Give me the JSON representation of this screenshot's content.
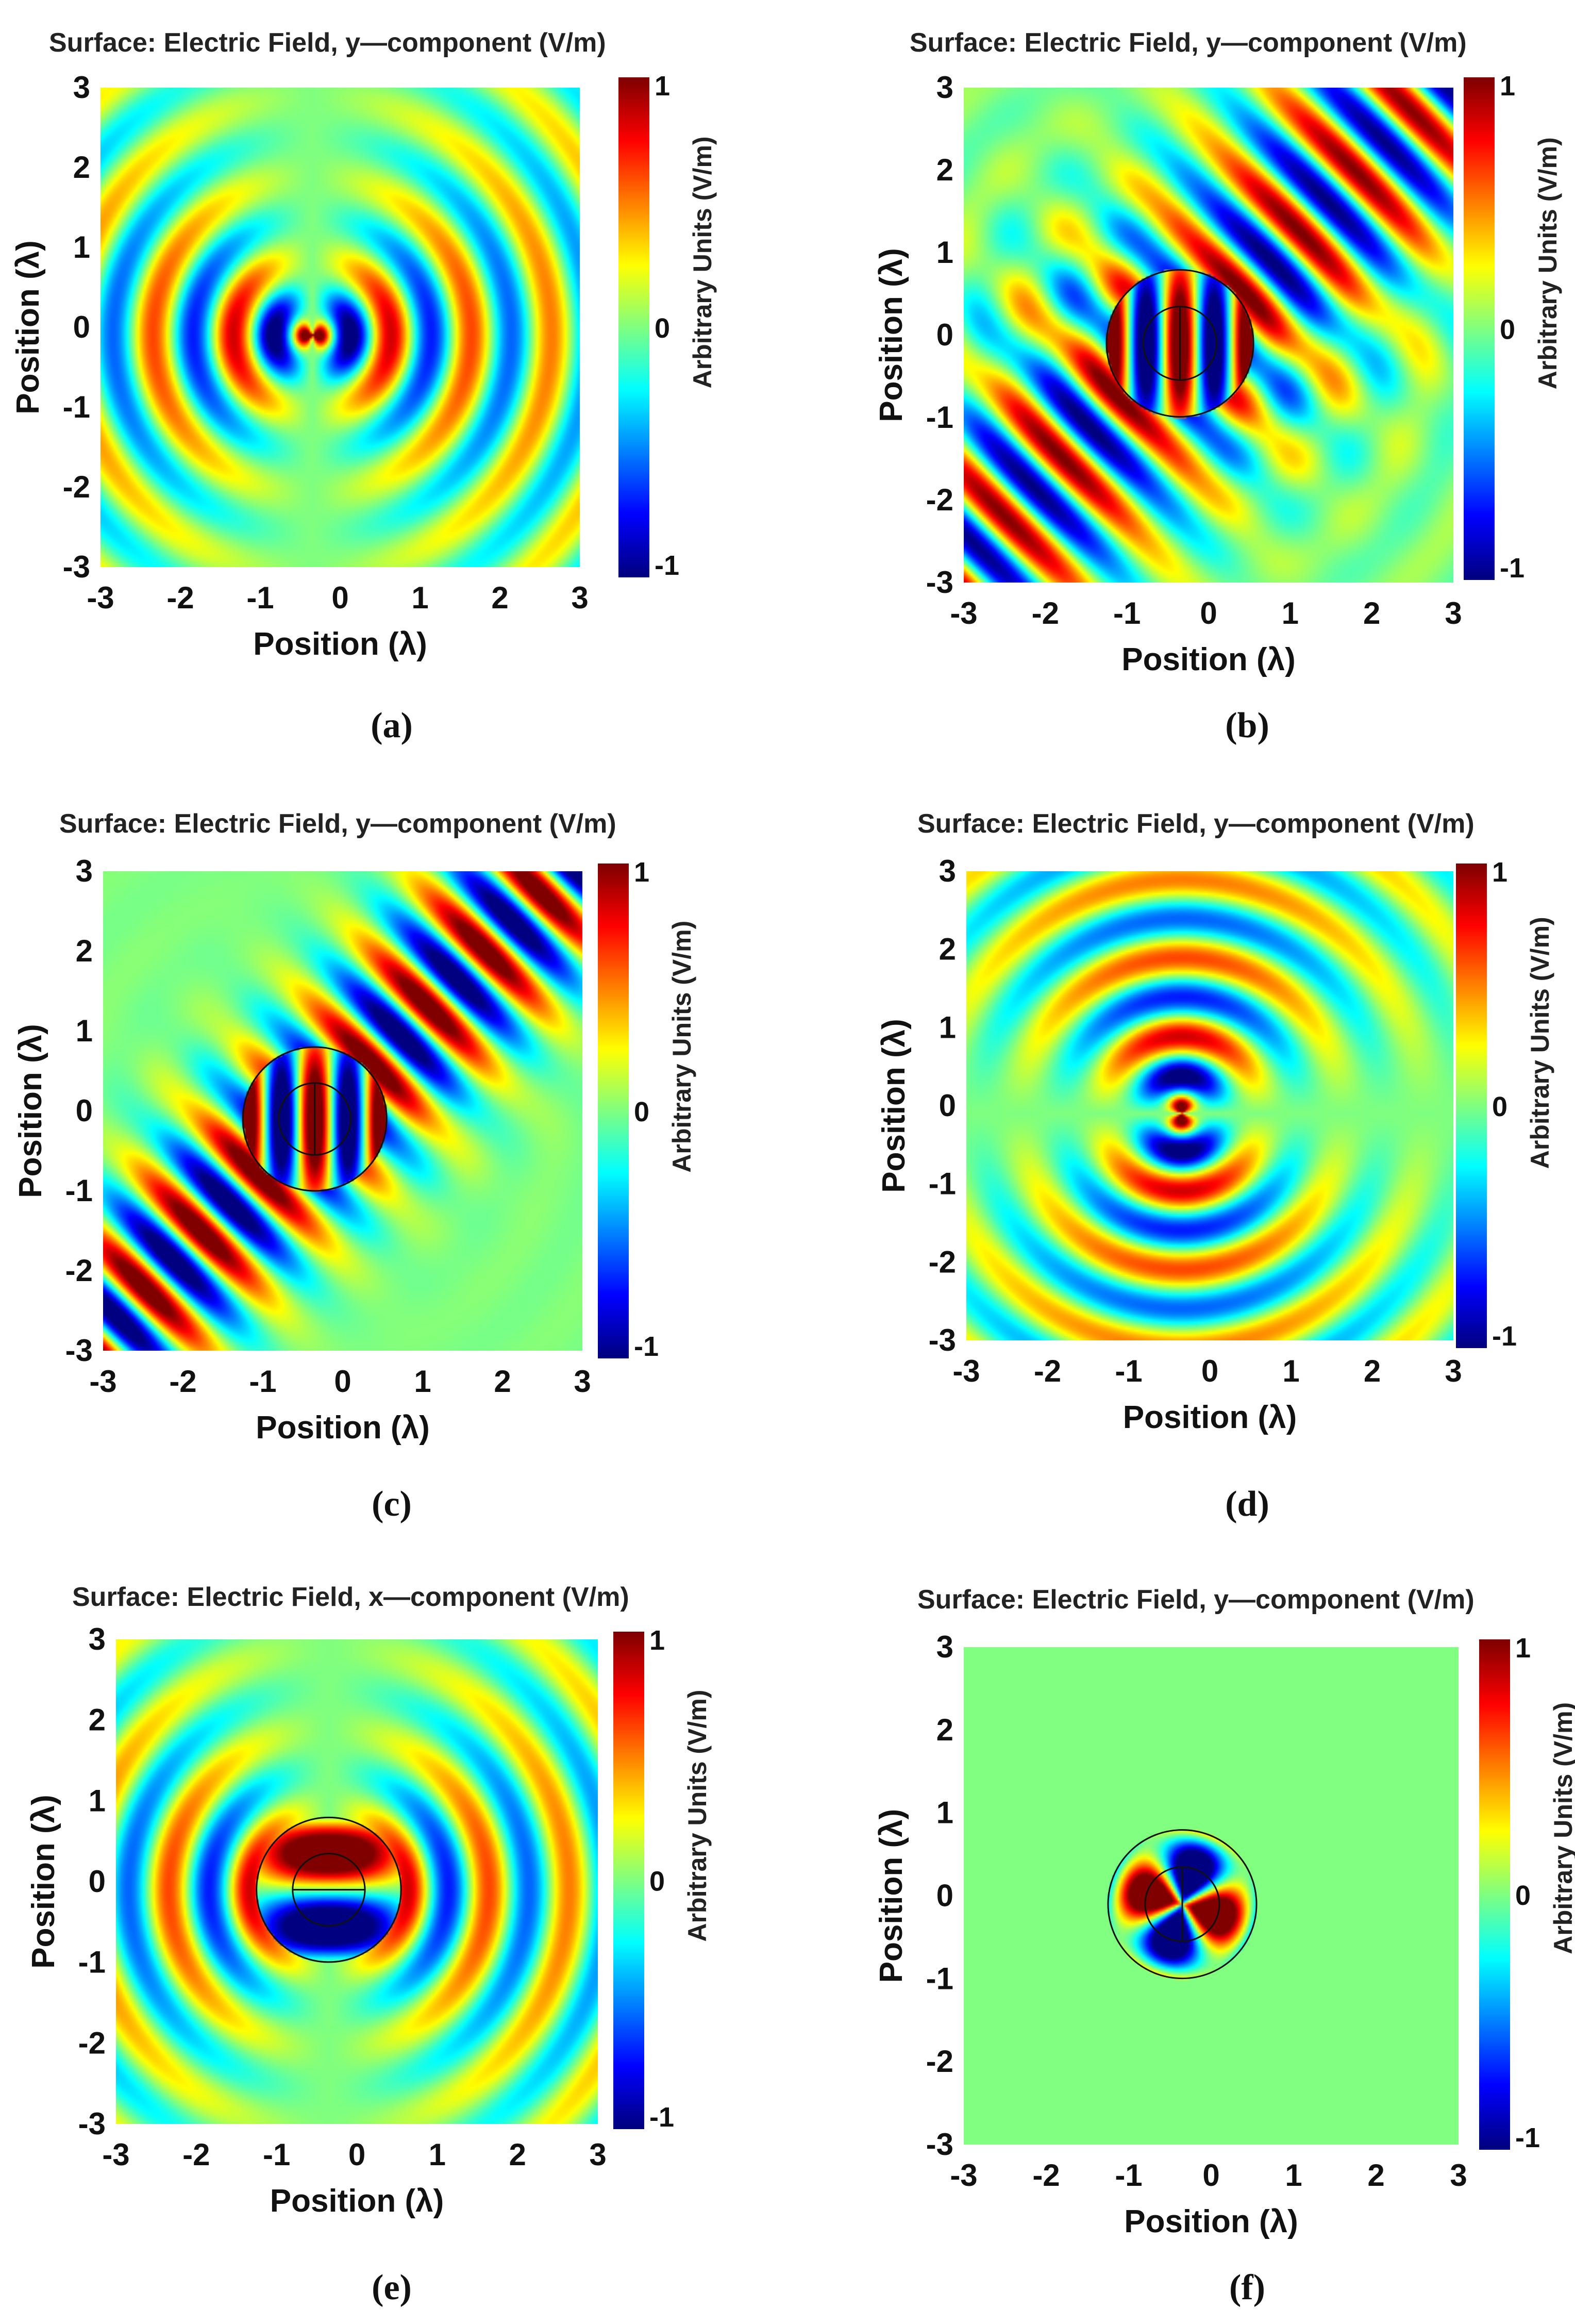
{
  "figure": {
    "colormap_name": "jet",
    "colors": {
      "background": "#ffffff",
      "text": "#111111",
      "outline": "#111111"
    }
  },
  "chart_data": [
    {
      "type": "heatmap",
      "panel_label": "(a)",
      "title": "Surface: Electric Field, y—component (V/m)",
      "xlabel": "Position (λ)",
      "ylabel": "Position (λ)",
      "x_ticks": [
        "-3",
        "-2",
        "-1",
        "0",
        "1",
        "2",
        "3"
      ],
      "y_ticks": [
        "3",
        "2",
        "1",
        "0",
        "-1",
        "-2",
        "-3"
      ],
      "xlim": [
        -3,
        3
      ],
      "ylim": [
        -3,
        3
      ],
      "colorbar": {
        "label": "Arbitrary Units (V/m)",
        "ticks": [
          "1",
          "0",
          "-1"
        ],
        "range": [
          -1,
          1
        ]
      },
      "source": {
        "x": -0.35,
        "y": -0.1
      },
      "field_model": "dipole-vertical",
      "scatterer": null
    },
    {
      "type": "heatmap",
      "panel_label": "(b)",
      "title": "Surface: Electric Field, y—component (V/m)",
      "xlabel": "Position (λ)",
      "ylabel": "Position (λ)",
      "x_ticks": [
        "-3",
        "-2",
        "-1",
        "0",
        "1",
        "2",
        "3"
      ],
      "y_ticks": [
        "3",
        "2",
        "1",
        "0",
        "-1",
        "-2",
        "-3"
      ],
      "xlim": [
        -3,
        3
      ],
      "ylim": [
        -3,
        3
      ],
      "colorbar": {
        "label": "Arbitrary Units (V/m)",
        "ticks": [
          "1",
          "0",
          "-1"
        ],
        "range": [
          -1,
          1
        ]
      },
      "source": {
        "x": -0.35,
        "y": -0.1
      },
      "field_model": "beam-diagonal-weak",
      "scatterer": {
        "outer_radius": 0.9,
        "inner_radius": 0.45,
        "inner_line": "vertical"
      }
    },
    {
      "type": "heatmap",
      "panel_label": "(c)",
      "title": "Surface: Electric Field, y—component (V/m)",
      "xlabel": "Position (λ)",
      "ylabel": "Position (λ)",
      "x_ticks": [
        "-3",
        "-2",
        "-1",
        "0",
        "1",
        "2",
        "3"
      ],
      "y_ticks": [
        "3",
        "2",
        "1",
        "0",
        "-1",
        "-2",
        "-3"
      ],
      "xlim": [
        -3,
        3
      ],
      "ylim": [
        -3,
        3
      ],
      "colorbar": {
        "label": "Arbitrary Units (V/m)",
        "ticks": [
          "1",
          "0",
          "-1"
        ],
        "range": [
          -1,
          1
        ]
      },
      "source": {
        "x": -0.35,
        "y": -0.1
      },
      "field_model": "beam-diagonal-strong",
      "scatterer": {
        "outer_radius": 0.9,
        "inner_radius": 0.45,
        "inner_line": "vertical"
      }
    },
    {
      "type": "heatmap",
      "panel_label": "(d)",
      "title": "Surface: Electric Field, y—component (V/m)",
      "xlabel": "Position (λ)",
      "ylabel": "Position (λ)",
      "x_ticks": [
        "-3",
        "-2",
        "-1",
        "0",
        "1",
        "2",
        "3"
      ],
      "y_ticks": [
        "3",
        "2",
        "1",
        "0",
        "-1",
        "-2",
        "-3"
      ],
      "xlim": [
        -3,
        3
      ],
      "ylim": [
        -3,
        3
      ],
      "colorbar": {
        "label": "Arbitrary Units (V/m)",
        "ticks": [
          "1",
          "0",
          "-1"
        ],
        "range": [
          -1,
          1
        ]
      },
      "source": {
        "x": -0.35,
        "y": -0.1
      },
      "field_model": "dipole-horizontal",
      "scatterer": null
    },
    {
      "type": "heatmap",
      "panel_label": "(e)",
      "title": "Surface: Electric Field, x—component (V/m)",
      "xlabel": "Position (λ)",
      "ylabel": "Position (λ)",
      "x_ticks": [
        "-3",
        "-2",
        "-1",
        "0",
        "1",
        "2",
        "3"
      ],
      "y_ticks": [
        "3",
        "2",
        "1",
        "0",
        "-1",
        "-2",
        "-3"
      ],
      "xlim": [
        -3,
        3
      ],
      "ylim": [
        -3,
        3
      ],
      "colorbar": {
        "label": "Arbitrary Units (V/m)",
        "ticks": [
          "1",
          "0",
          "-1"
        ],
        "range": [
          -1,
          1
        ]
      },
      "source": {
        "x": -0.35,
        "y": -0.1
      },
      "field_model": "dipole-vertical-cloaked",
      "scatterer": {
        "outer_radius": 0.9,
        "inner_radius": 0.45,
        "inner_line": "horizontal"
      }
    },
    {
      "type": "heatmap",
      "panel_label": "(f)",
      "title": "Surface: Electric Field, y—component (V/m)",
      "xlabel": "Position (λ)",
      "ylabel": "Position (λ)",
      "x_ticks": [
        "-3",
        "-2",
        "-1",
        "0",
        "1",
        "2",
        "3"
      ],
      "y_ticks": [
        "3",
        "2",
        "1",
        "0",
        "-1",
        "-2",
        "-3"
      ],
      "xlim": [
        -3,
        3
      ],
      "ylim": [
        -3,
        3
      ],
      "colorbar": {
        "label": "Arbitrary Units (V/m)",
        "ticks": [
          "1",
          "0",
          "-1"
        ],
        "range": [
          -1,
          1
        ]
      },
      "source": {
        "x": -0.35,
        "y": -0.1
      },
      "field_model": "confined",
      "scatterer": {
        "outer_radius": 0.9,
        "inner_radius": 0.45,
        "inner_line": "vertical"
      }
    }
  ]
}
